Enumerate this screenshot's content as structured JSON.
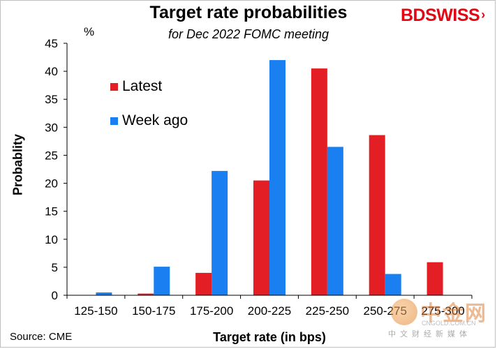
{
  "header": {
    "title": "Target rate probabilities",
    "subtitle": "for Dec 2022 FOMC meeting",
    "unit": "%"
  },
  "brand": {
    "part1": "BD",
    "part2": "SWISS",
    "arrow": "›"
  },
  "footer": {
    "source": "Source: CME"
  },
  "watermark": {
    "main": "中金网",
    "url": "CNGOLD.COM.CN",
    "sub": "中文财经新媒体"
  },
  "colors": {
    "latest": "#e31e24",
    "week_ago": "#1a7ff0",
    "axis": "#000000"
  },
  "chart_data": {
    "type": "bar",
    "xlabel": "Target rate (in bps)",
    "ylabel": "Probablity",
    "ylim": [
      0,
      45
    ],
    "yticks": [
      0,
      5,
      10,
      15,
      20,
      25,
      30,
      35,
      40,
      45
    ],
    "grid": false,
    "legend_position": "top-left",
    "categories": [
      "125-150",
      "150-175",
      "175-200",
      "200-225",
      "225-250",
      "250-275",
      "275-300"
    ],
    "series": [
      {
        "name": "Latest",
        "values": [
          0.0,
          0.3,
          4.0,
          20.5,
          40.5,
          28.6,
          5.9
        ]
      },
      {
        "name": "Week ago",
        "values": [
          0.5,
          5.1,
          22.2,
          42.0,
          26.5,
          3.8,
          0.0
        ]
      }
    ]
  }
}
